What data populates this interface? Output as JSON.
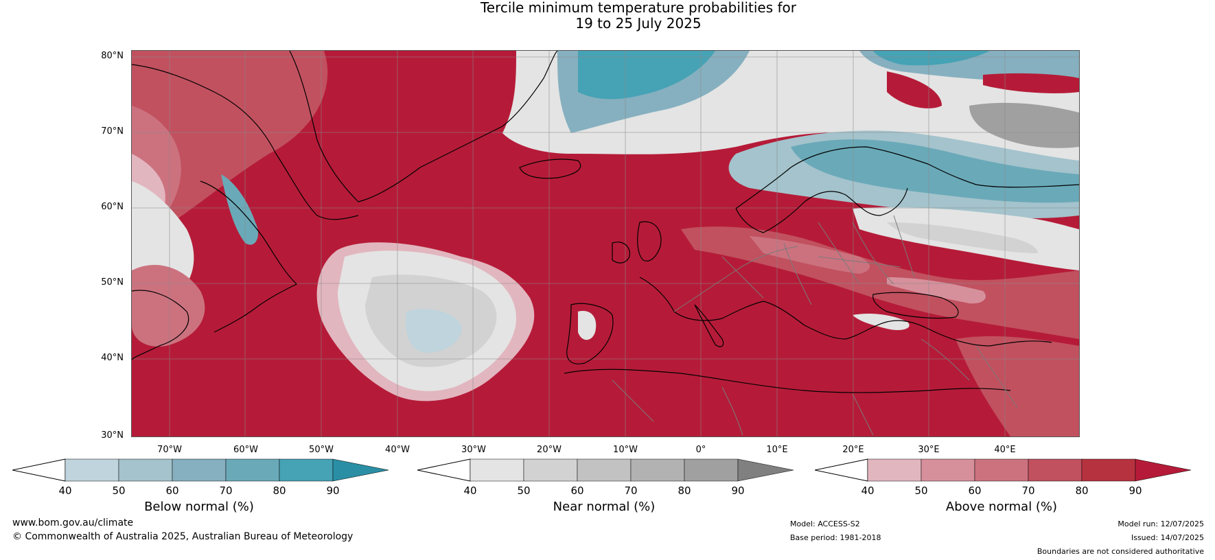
{
  "title": {
    "line1": "Tercile minimum temperature probabilities for",
    "line2": "19 to 25 July 2025"
  },
  "axes": {
    "lat_labels": [
      "80°N",
      "70°N",
      "60°N",
      "50°N",
      "40°N",
      "30°N"
    ],
    "lon_labels": [
      "70°W",
      "60°W",
      "50°W",
      "40°W",
      "30°W",
      "20°W",
      "10°W",
      "0°",
      "10°E",
      "20°E",
      "30°E",
      "40°E"
    ]
  },
  "colorbars": [
    {
      "title": "Below normal (%)",
      "ticks": [
        "40",
        "50",
        "60",
        "70",
        "80",
        "90"
      ],
      "colors": [
        "#bfd4dc",
        "#a4c3cc",
        "#86b0bf",
        "#6aa9b8",
        "#46a2b5",
        "#2a8fa5"
      ]
    },
    {
      "title": "Near normal (%)",
      "ticks": [
        "40",
        "50",
        "60",
        "70",
        "80",
        "90"
      ],
      "colors": [
        "#e4e4e4",
        "#d2d2d2",
        "#c2c2c2",
        "#b2b2b2",
        "#a0a0a0",
        "#808080"
      ]
    },
    {
      "title": "Above normal (%)",
      "ticks": [
        "40",
        "50",
        "60",
        "70",
        "80",
        "90"
      ],
      "colors": [
        "#e2b6bf",
        "#d6909c",
        "#cc727f",
        "#c1515f",
        "#b7323f",
        "#b51b38"
      ]
    }
  ],
  "footer": {
    "url": "www.bom.gov.au/climate",
    "copyright": "© Commonwealth of Australia 2025, Australian Bureau of Meteorology",
    "model": "Model: ACCESS-S2",
    "base_period": "Base period: 1981-2018",
    "model_run": "Model run: 12/07/2025",
    "issued": "Issued: 14/07/2025",
    "disclaimer": "Boundaries are not considered authoritative"
  }
}
